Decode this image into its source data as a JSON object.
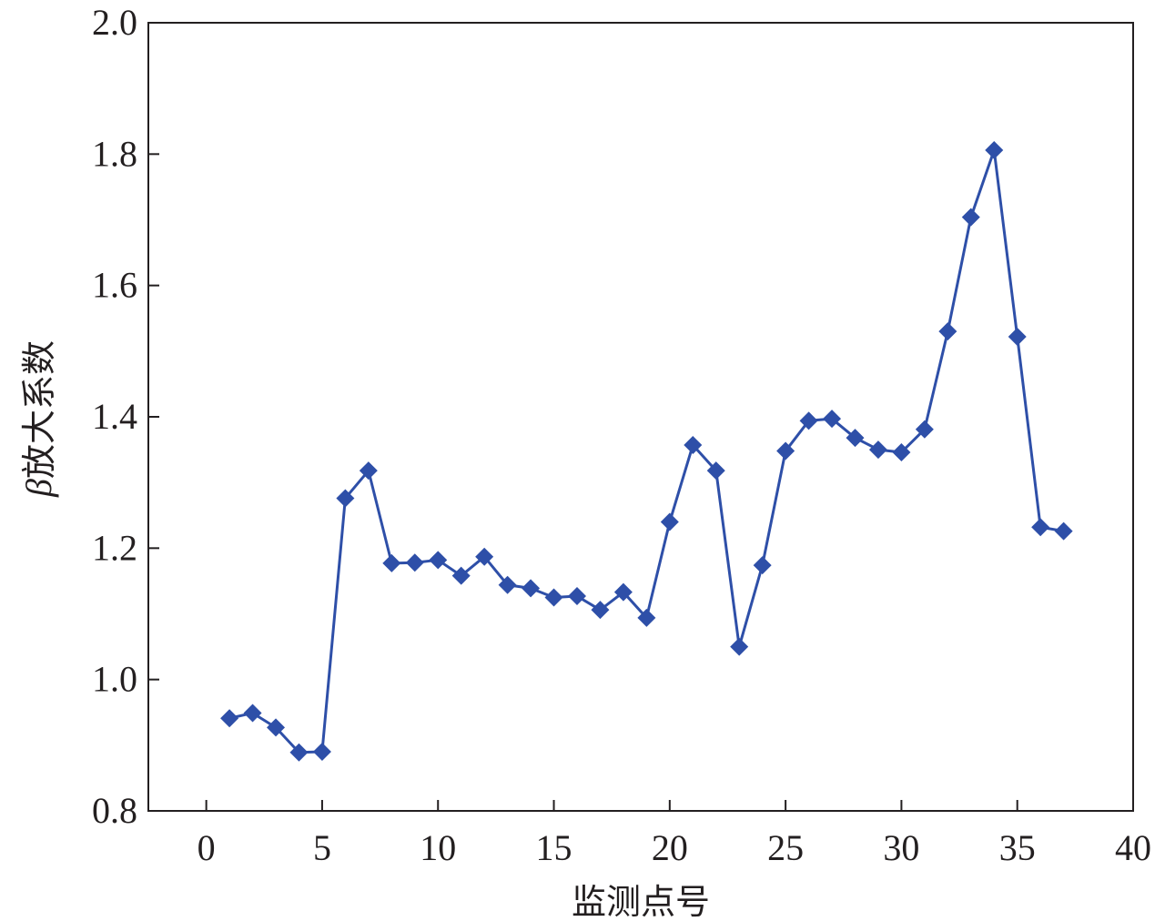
{
  "chart_data": {
    "type": "line",
    "title": "",
    "xlabel": "监测点号",
    "ylabel": {
      "symbol": "β",
      "text": "放大系数"
    },
    "xlim": [
      -2.5,
      40
    ],
    "ylim": [
      0.8,
      2.0
    ],
    "x_ticks": [
      0,
      5,
      10,
      15,
      20,
      25,
      30,
      35,
      40
    ],
    "x_tick_labels": [
      "0",
      "5",
      "10",
      "15",
      "20",
      "25",
      "30",
      "35",
      "40"
    ],
    "y_ticks": [
      0.8,
      1.0,
      1.2,
      1.4,
      1.6,
      1.8,
      2.0
    ],
    "y_tick_labels": [
      "0.8",
      "1.0",
      "1.2",
      "1.4",
      "1.6",
      "1.8",
      "2.0"
    ],
    "grid": false,
    "legend": "none",
    "marker": "diamond",
    "color": "#2e4fa8",
    "series": [
      {
        "x": [
          1,
          2,
          3,
          4,
          5,
          6,
          7,
          8,
          9,
          10,
          11,
          12,
          13,
          14,
          15,
          16,
          17,
          18,
          19,
          20,
          21,
          22,
          23,
          24,
          25,
          26,
          27,
          28,
          29,
          30,
          31,
          32,
          33,
          34,
          35,
          36,
          37
        ],
        "values": [
          0.941,
          0.949,
          0.927,
          0.889,
          0.89,
          1.276,
          1.318,
          1.177,
          1.178,
          1.182,
          1.158,
          1.187,
          1.144,
          1.139,
          1.125,
          1.127,
          1.106,
          1.133,
          1.094,
          1.24,
          1.357,
          1.318,
          1.05,
          1.174,
          1.348,
          1.394,
          1.397,
          1.368,
          1.35,
          1.346,
          1.381,
          1.53,
          1.704,
          1.806,
          1.522,
          1.232,
          1.226
        ]
      }
    ]
  }
}
